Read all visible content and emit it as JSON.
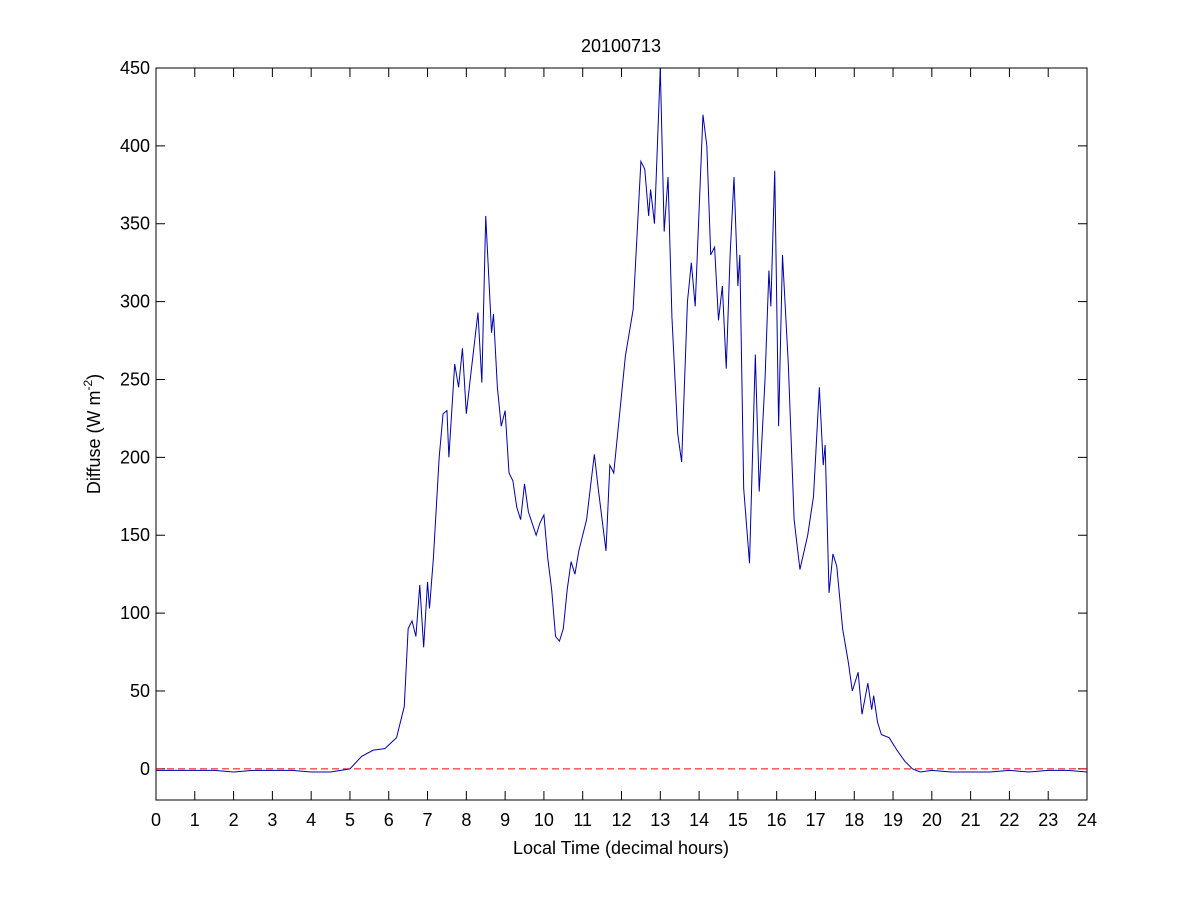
{
  "chart_data": {
    "type": "line",
    "title": "20100713",
    "x_label": "Local Time (decimal hours)",
    "y_label": {
      "text": "Diffuse (W m",
      "superscript": "-2",
      "suffix": ")"
    },
    "xlim": [
      0,
      24
    ],
    "ylim": [
      -20,
      450
    ],
    "xticks": [
      0,
      1,
      2,
      3,
      4,
      5,
      6,
      7,
      8,
      9,
      10,
      11,
      12,
      13,
      14,
      15,
      16,
      17,
      18,
      19,
      20,
      21,
      22,
      23,
      24
    ],
    "yticks": [
      0,
      50,
      100,
      150,
      200,
      250,
      300,
      350,
      400,
      450
    ],
    "reference_line": {
      "value": 0,
      "color": "#ff0000",
      "style": "dashed"
    },
    "series": [
      {
        "color": "#0000aa",
        "x": [
          0,
          0.5,
          1,
          1.5,
          2,
          2.5,
          3,
          3.5,
          4,
          4.5,
          5,
          5.3,
          5.6,
          5.9,
          6.2,
          6.4,
          6.5,
          6.6,
          6.7,
          6.8,
          6.9,
          7.0,
          7.05,
          7.15,
          7.3,
          7.4,
          7.5,
          7.55,
          7.7,
          7.8,
          7.9,
          8.0,
          8.1,
          8.3,
          8.4,
          8.5,
          8.65,
          8.7,
          8.8,
          8.9,
          9.0,
          9.1,
          9.2,
          9.3,
          9.4,
          9.5,
          9.6,
          9.8,
          9.9,
          10.0,
          10.1,
          10.2,
          10.3,
          10.4,
          10.5,
          10.6,
          10.7,
          10.8,
          10.9,
          11.1,
          11.3,
          11.4,
          11.5,
          11.6,
          11.7,
          11.8,
          11.9,
          12.0,
          12.1,
          12.3,
          12.5,
          12.6,
          12.7,
          12.75,
          12.85,
          13.0,
          13.1,
          13.2,
          13.3,
          13.45,
          13.55,
          13.7,
          13.8,
          13.9,
          14.1,
          14.2,
          14.3,
          14.4,
          14.5,
          14.6,
          14.7,
          14.8,
          14.9,
          15.0,
          15.05,
          15.15,
          15.3,
          15.45,
          15.55,
          15.7,
          15.8,
          15.85,
          15.95,
          16.05,
          16.15,
          16.3,
          16.45,
          16.6,
          16.8,
          16.95,
          17.1,
          17.2,
          17.25,
          17.35,
          17.45,
          17.55,
          17.7,
          17.85,
          17.95,
          18.1,
          18.2,
          18.35,
          18.45,
          18.5,
          18.6,
          18.7,
          18.9,
          19.1,
          19.3,
          19.5,
          19.7,
          20.0,
          20.5,
          21,
          21.5,
          22,
          22.5,
          23,
          23.5,
          24
        ],
        "values": [
          -1,
          -1,
          -1,
          -1,
          -2,
          -1,
          -1,
          -1,
          -2,
          -2,
          0,
          8,
          12,
          13,
          20,
          40,
          90,
          95,
          85,
          118,
          78,
          120,
          103,
          135,
          200,
          228,
          230,
          200,
          260,
          245,
          270,
          228,
          250,
          293,
          248,
          355,
          280,
          292,
          245,
          220,
          230,
          190,
          185,
          168,
          160,
          183,
          165,
          150,
          158,
          163,
          135,
          115,
          85,
          82,
          90,
          115,
          133,
          125,
          140,
          160,
          202,
          180,
          160,
          140,
          195,
          190,
          215,
          240,
          265,
          295,
          390,
          385,
          355,
          372,
          350,
          450,
          345,
          380,
          290,
          215,
          197,
          300,
          325,
          297,
          420,
          400,
          330,
          335,
          288,
          310,
          257,
          330,
          380,
          310,
          330,
          180,
          132,
          266,
          178,
          250,
          320,
          297,
          384,
          220,
          330,
          260,
          160,
          128,
          150,
          175,
          245,
          195,
          208,
          113,
          138,
          130,
          90,
          68,
          50,
          62,
          35,
          55,
          38,
          47,
          30,
          22,
          20,
          12,
          5,
          0,
          -2,
          -1,
          -2,
          -2,
          -2,
          -1,
          -2,
          -1,
          -1,
          -2
        ]
      }
    ]
  }
}
